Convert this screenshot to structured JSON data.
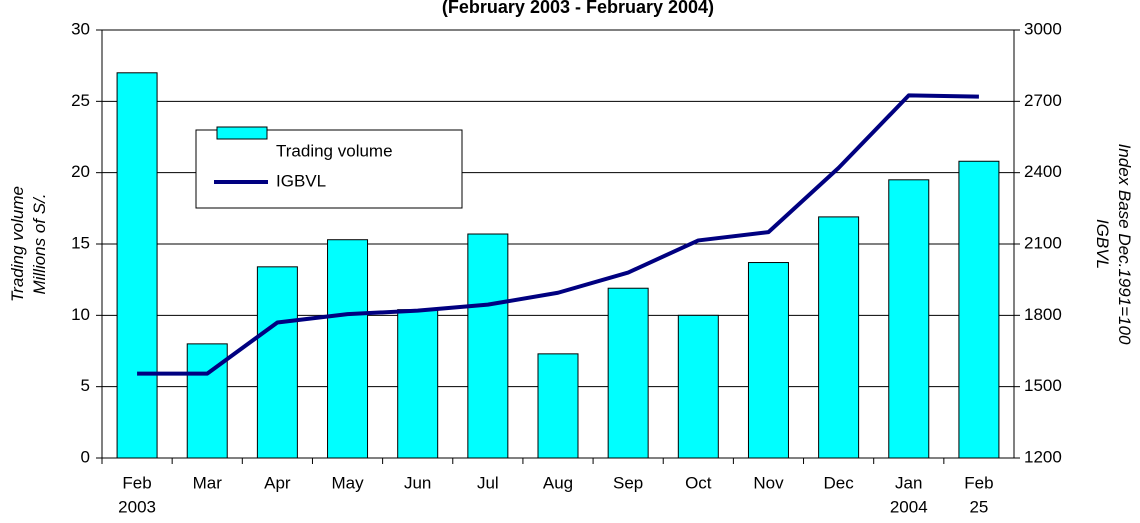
{
  "chart_data": {
    "type": "bar-line",
    "title": "(February 2003 - February 2004)",
    "y_label": [
      "Trading volume",
      "Millions of S/."
    ],
    "y2_label": [
      "Index Base Dec.1991=100",
      "IGBVL"
    ],
    "categories": [
      [
        "Feb",
        "2003"
      ],
      [
        "Mar"
      ],
      [
        "Apr"
      ],
      [
        "May"
      ],
      [
        "Jun"
      ],
      [
        "Jul"
      ],
      [
        "Aug"
      ],
      [
        "Sep"
      ],
      [
        "Oct"
      ],
      [
        "Nov"
      ],
      [
        "Dec"
      ],
      [
        "Jan",
        "2004"
      ],
      [
        "Feb",
        "25"
      ]
    ],
    "series": [
      {
        "name": "Trading volume",
        "type": "bar",
        "color": "#00ffff",
        "values": [
          27.0,
          8.0,
          13.4,
          15.3,
          10.4,
          15.7,
          7.3,
          11.9,
          10.0,
          13.7,
          16.9,
          19.5,
          20.8
        ]
      },
      {
        "name": "IGBVL",
        "type": "line",
        "axis": "y2",
        "color": "#000080",
        "values": [
          1555,
          1555,
          1770,
          1805,
          1820,
          1845,
          1895,
          1980,
          2115,
          2150,
          2420,
          2725,
          2720
        ]
      }
    ],
    "ylim": [
      0,
      30
    ],
    "yticks": [
      0,
      5,
      10,
      15,
      20,
      25,
      30
    ],
    "y2lim": [
      1200,
      3000
    ],
    "y2ticks": [
      1200,
      1500,
      1800,
      2100,
      2400,
      2700,
      3000
    ],
    "grid": true
  }
}
